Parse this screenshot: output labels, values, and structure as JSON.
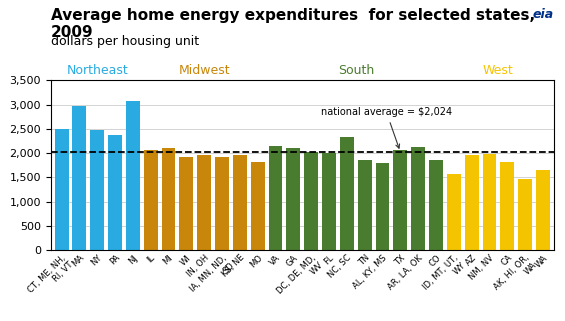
{
  "chart_data": {
    "type": "bar",
    "title": "Average home energy expenditures  for selected states, 2009",
    "subtitle": "dollars per housing unit",
    "categories": [
      "CT, ME, NH,\nRI, VT",
      "MA",
      "NY",
      "PA",
      "NJ",
      "IL",
      "MI",
      "WI",
      "IN, OH",
      "IA, MN, ND,\nSD",
      "KS, NE",
      "MO",
      "VA",
      "GA",
      "DC, DE, MD,\nWV",
      "FL",
      "NC, SC",
      "TN",
      "AL, KY, MS",
      "TX",
      "AR, LA, OK",
      "CO",
      "ID, MT, UT,\nWY",
      "AZ",
      "NM, NV",
      "CA",
      "AK, HI, OR,\nWA",
      "WA"
    ],
    "values": [
      2500,
      2970,
      2480,
      2370,
      3080,
      2060,
      2110,
      1930,
      1960,
      1920,
      1960,
      1810,
      2140,
      2100,
      2020,
      2000,
      2340,
      1850,
      1800,
      2060,
      2130,
      1850,
      1580,
      1970,
      1980,
      1820,
      1460,
      1660
    ],
    "colors": [
      "#29ABE2",
      "#29ABE2",
      "#29ABE2",
      "#29ABE2",
      "#29ABE2",
      "#C8860A",
      "#C8860A",
      "#C8860A",
      "#C8860A",
      "#C8860A",
      "#C8860A",
      "#C8860A",
      "#4A7C2F",
      "#4A7C2F",
      "#4A7C2F",
      "#4A7C2F",
      "#4A7C2F",
      "#4A7C2F",
      "#4A7C2F",
      "#4A7C2F",
      "#4A7C2F",
      "#4A7C2F",
      "#F5C400",
      "#F5C400",
      "#F5C400",
      "#F5C400",
      "#F5C400",
      "#F5C400"
    ],
    "ylim": [
      0,
      3500
    ],
    "yticks": [
      0,
      500,
      {
        "value": 1000,
        "label": "1,000"
      },
      {
        "value": 1500,
        "label": "1,500"
      },
      {
        "value": 2000,
        "label": "2,000"
      },
      {
        "value": 2500,
        "label": "2,500"
      },
      {
        "value": 3000,
        "label": "3,000"
      },
      {
        "value": 3500,
        "label": "3,500"
      }
    ],
    "grid": true,
    "reference_line": {
      "value": 2024,
      "label": "national average = $2,024"
    },
    "groups": [
      {
        "text": "Northeast",
        "start": 0,
        "end": 4,
        "color": "#29ABE2"
      },
      {
        "text": "Midwest",
        "start": 5,
        "end": 11,
        "color": "#C8860A"
      },
      {
        "text": "South",
        "start": 12,
        "end": 21,
        "color": "#4A7C2F"
      },
      {
        "text": "West",
        "start": 22,
        "end": 27,
        "color": "#F5C400"
      }
    ],
    "annotations": [
      "eia"
    ]
  }
}
